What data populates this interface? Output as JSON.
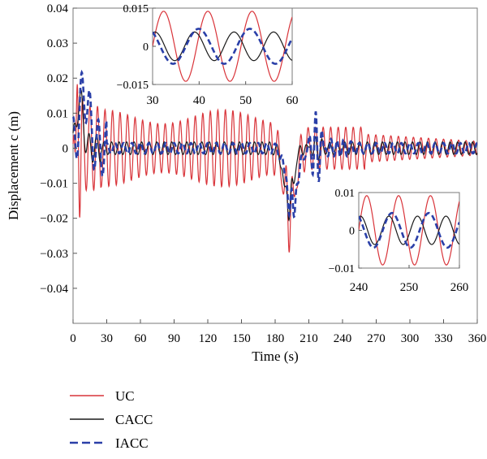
{
  "chart_data": {
    "type": "line",
    "xlabel": "Time (s)",
    "ylabel": "Displacement c (m)",
    "xlim": [
      0,
      360
    ],
    "ylim": [
      -0.05,
      0.04
    ],
    "xticks": [
      0,
      30,
      60,
      90,
      120,
      150,
      180,
      210,
      240,
      270,
      300,
      330,
      360
    ],
    "yticks": [
      0.04,
      0.03,
      0.02,
      0.01,
      0,
      -0.01,
      -0.02,
      -0.03,
      -0.04
    ],
    "grid": false,
    "legend_position": "bottom-left, below plot",
    "series": [
      {
        "name": "UC",
        "color": "#d9343a",
        "style": "solid",
        "description_points": [
          [
            2,
            0.02
          ],
          [
            5,
            0.03
          ],
          [
            10,
            0.018
          ],
          [
            30,
            -0.009
          ],
          [
            60,
            0.009
          ],
          [
            120,
            0.008
          ],
          [
            180,
            0.008
          ],
          [
            190,
            -0.027
          ],
          [
            197,
            -0.026
          ],
          [
            205,
            -0.005
          ],
          [
            220,
            0.006
          ],
          [
            300,
            0.004
          ],
          [
            355,
            0.002
          ]
        ]
      },
      {
        "name": "CACC",
        "color": "#1a1a1a",
        "style": "solid",
        "description_points": [
          [
            5,
            0.016
          ],
          [
            20,
            -0.002
          ],
          [
            60,
            0.002
          ],
          [
            180,
            0.002
          ],
          [
            190,
            -0.022
          ],
          [
            200,
            -0.008
          ],
          [
            220,
            0.004
          ],
          [
            300,
            0.001
          ],
          [
            355,
            0.001
          ]
        ]
      },
      {
        "name": "IACC",
        "color": "#2a3fa8",
        "style": "dashed",
        "description_points": [
          [
            8,
            0.022
          ],
          [
            20,
            0.008
          ],
          [
            30,
            -0.006
          ],
          [
            60,
            0.002
          ],
          [
            180,
            0.001
          ],
          [
            190,
            -0.015
          ],
          [
            197,
            -0.02
          ],
          [
            210,
            0.004
          ],
          [
            218,
            0.015
          ],
          [
            240,
            0.005
          ],
          [
            300,
            0.002
          ],
          [
            355,
            0.001
          ]
        ]
      }
    ],
    "insets": [
      {
        "xlim": [
          30,
          60
        ],
        "ylim": [
          -0.015,
          0.015
        ],
        "xticks": [
          30,
          40,
          50,
          60
        ],
        "yticks": [
          0.015,
          0,
          -0.015
        ],
        "ytick_labels": [
          "0.015",
          "0",
          "−0.015"
        ]
      },
      {
        "xlim": [
          240,
          260
        ],
        "ylim": [
          -0.01,
          0.01
        ],
        "xticks": [
          240,
          250,
          260
        ],
        "yticks": [
          0.01,
          0,
          -0.01
        ],
        "ytick_labels": [
          "0.01",
          "0",
          "−0.01"
        ]
      }
    ],
    "ytick_labels": [
      "0.04",
      "0.03",
      "0.02",
      "0.01",
      "0",
      "−0.01",
      "−0.02",
      "−0.03",
      "−0.04"
    ]
  },
  "legend": [
    {
      "label": "UC",
      "color": "#d9343a",
      "dash": ""
    },
    {
      "label": "CACC",
      "color": "#1a1a1a",
      "dash": ""
    },
    {
      "label": "IACC",
      "color": "#2a3fa8",
      "dash": "10,5"
    }
  ]
}
